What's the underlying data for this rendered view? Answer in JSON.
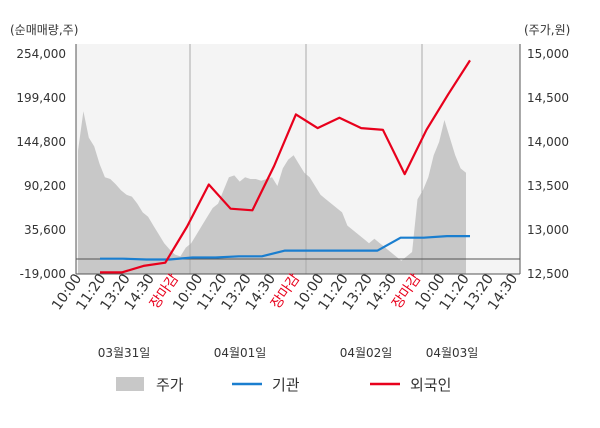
{
  "chart_data": {
    "type": "area+line",
    "left_axis": {
      "unit_label": "(순매매량,주)",
      "ticks": [
        254000,
        199400,
        144800,
        90200,
        35600,
        -19000
      ],
      "tick_labels": [
        "254,000",
        "199,400",
        "144,800",
        "90,200",
        "35,600",
        "-19,000"
      ],
      "range": [
        -19000,
        254000
      ]
    },
    "right_axis": {
      "unit_label": "(주가,원)",
      "ticks": [
        15000,
        14500,
        14000,
        13500,
        13000,
        12500
      ],
      "tick_labels": [
        "15,000",
        "14,500",
        "14,000",
        "13,500",
        "13,000",
        "12,500"
      ],
      "range": [
        12500,
        15000
      ]
    },
    "x_tick_labels": [
      {
        "text": "10:00",
        "color": "#333333"
      },
      {
        "text": "11:20",
        "color": "#333333"
      },
      {
        "text": "13:20",
        "color": "#333333"
      },
      {
        "text": "14:30",
        "color": "#333333"
      },
      {
        "text": "장마감",
        "color": "#e8001c"
      },
      {
        "text": "10:00",
        "color": "#333333"
      },
      {
        "text": "11:20",
        "color": "#333333"
      },
      {
        "text": "13:20",
        "color": "#333333"
      },
      {
        "text": "14:30",
        "color": "#333333"
      },
      {
        "text": "장마감",
        "color": "#e8001c"
      },
      {
        "text": "10:00",
        "color": "#333333"
      },
      {
        "text": "11:20",
        "color": "#333333"
      },
      {
        "text": "13:20",
        "color": "#333333"
      },
      {
        "text": "14:30",
        "color": "#333333"
      },
      {
        "text": "장마감",
        "color": "#e8001c"
      },
      {
        "text": "10:00",
        "color": "#333333"
      },
      {
        "text": "11:20",
        "color": "#333333"
      },
      {
        "text": "13:20",
        "color": "#333333"
      },
      {
        "text": "14:30",
        "color": "#333333"
      }
    ],
    "date_labels": [
      "03월31일",
      "04월01일",
      "04월02일",
      "04월03일"
    ],
    "series": [
      {
        "name": "주가",
        "kind": "area",
        "axis": "right",
        "color": "#c8c8c8",
        "values": [
          13900,
          14350,
          14050,
          13950,
          13750,
          13600,
          13580,
          13520,
          13450,
          13400,
          13380,
          13300,
          13200,
          13150,
          13050,
          12950,
          12850,
          12780,
          12720,
          12700,
          12800,
          12850,
          12950,
          13050,
          13150,
          13250,
          13300,
          13450,
          13600,
          13620,
          13550,
          13600,
          13580,
          13580,
          13560,
          13580,
          13600,
          13500,
          13700,
          13800,
          13850,
          13750,
          13650,
          13600,
          13500,
          13400,
          13350,
          13300,
          13250,
          13200,
          13050,
          13000,
          12950,
          12900,
          12850,
          12900,
          12850,
          12800,
          12750,
          12700,
          12650,
          12700,
          12750,
          13350,
          13450,
          13600,
          13850,
          14000,
          14250,
          14050,
          13850,
          13700,
          13650
        ]
      },
      {
        "name": "기관",
        "kind": "line",
        "axis": "left",
        "color": "#1a7ecf",
        "values": [
          0,
          0,
          -1000,
          -1000,
          1500,
          1500,
          3000,
          3000,
          10000,
          10000,
          10000,
          10000,
          10000,
          26000,
          26000,
          28000,
          28000
        ]
      },
      {
        "name": "외국인",
        "kind": "line",
        "axis": "left",
        "color": "#e8001c",
        "values": [
          -17000,
          -17000,
          -9000,
          -5000,
          40000,
          92000,
          62000,
          60000,
          115000,
          179000,
          162000,
          175000,
          162000,
          160000,
          105000,
          160000,
          204000,
          246000
        ]
      }
    ],
    "legend": {
      "position": "bottom",
      "items": [
        {
          "label": "주가",
          "color": "#c8c8c8",
          "kind": "area"
        },
        {
          "label": "기관",
          "color": "#1a7ecf",
          "kind": "line"
        },
        {
          "label": "외국인",
          "color": "#e8001c",
          "kind": "line"
        }
      ]
    },
    "grid": {
      "vertical_day_separators": true,
      "horizontal": false
    }
  }
}
